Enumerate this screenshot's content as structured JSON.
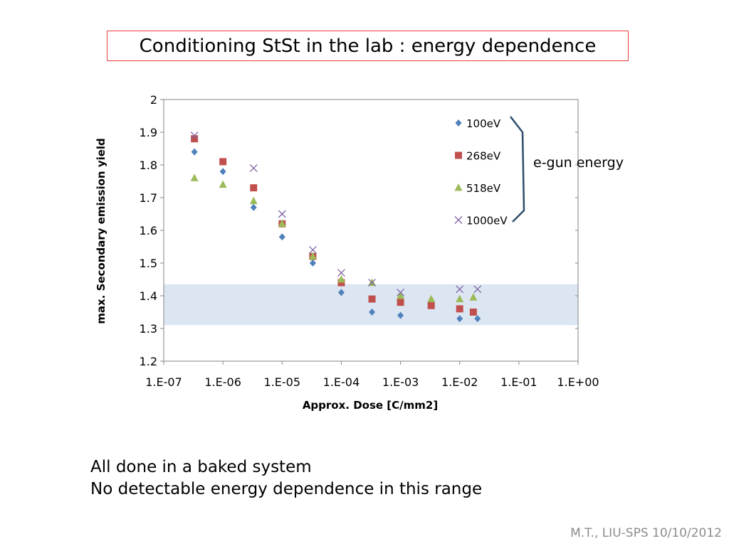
{
  "title": "Conditioning StSt in the lab : energy dependence",
  "bullets": [
    "All done in a baked system",
    "No detectable energy dependence in this range"
  ],
  "footer": "M.T., LIU-SPS 10/10/2012",
  "chart_data": {
    "type": "scatter",
    "x_scale": "log",
    "xlabel": "Approx. Dose [C/mm2]",
    "ylabel": "max. Secondary emission yield",
    "xlim": [
      1e-07,
      1
    ],
    "ylim": [
      1.2,
      2.0
    ],
    "x_tick_labels": [
      "1.E-07",
      "1.E-06",
      "1.E-05",
      "1.E-04",
      "1.E-03",
      "1.E-02",
      "1.E-01",
      "1.E+00"
    ],
    "y_tick_labels": [
      "1.2",
      "1.3",
      "1.4",
      "1.5",
      "1.6",
      "1.7",
      "1.8",
      "1.9",
      "2"
    ],
    "grid": false,
    "legend_position": "top-right inside",
    "band": {
      "y_range": [
        1.31,
        1.435
      ],
      "color": "#dce6f2"
    },
    "annotation": "e-gun energy",
    "series": [
      {
        "name": "100eV",
        "marker": "diamond",
        "color": "#4f81bd",
        "x": [
          3.3e-07,
          1e-06,
          3.3e-06,
          1e-05,
          3.3e-05,
          0.0001,
          0.00033,
          0.001,
          0.0033,
          0.01,
          0.02
        ],
        "y": [
          1.84,
          1.78,
          1.67,
          1.58,
          1.5,
          1.41,
          1.35,
          1.34,
          1.38,
          1.33,
          1.33
        ]
      },
      {
        "name": "268eV",
        "marker": "square",
        "color": "#c0504d",
        "x": [
          3.3e-07,
          1e-06,
          3.3e-06,
          1e-05,
          3.3e-05,
          0.0001,
          0.00033,
          0.001,
          0.0033,
          0.01,
          0.017
        ],
        "y": [
          1.88,
          1.81,
          1.73,
          1.62,
          1.52,
          1.44,
          1.39,
          1.38,
          1.37,
          1.36,
          1.35
        ]
      },
      {
        "name": "518eV",
        "marker": "triangle",
        "color": "#9bbb59",
        "x": [
          3.3e-07,
          1e-06,
          3.3e-06,
          1e-05,
          3.3e-05,
          0.0001,
          0.00033,
          0.001,
          0.0033,
          0.01,
          0.017
        ],
        "y": [
          1.76,
          1.74,
          1.69,
          1.62,
          1.52,
          1.45,
          1.44,
          1.4,
          1.39,
          1.39,
          1.395
        ]
      },
      {
        "name": "1000eV",
        "marker": "x",
        "color": "#8064a2",
        "x": [
          3.3e-07,
          3.3e-06,
          1e-05,
          3.3e-05,
          0.0001,
          0.00033,
          0.001,
          0.01,
          0.02
        ],
        "y": [
          1.89,
          1.79,
          1.65,
          1.54,
          1.47,
          1.44,
          1.41,
          1.42,
          1.42
        ]
      }
    ]
  }
}
